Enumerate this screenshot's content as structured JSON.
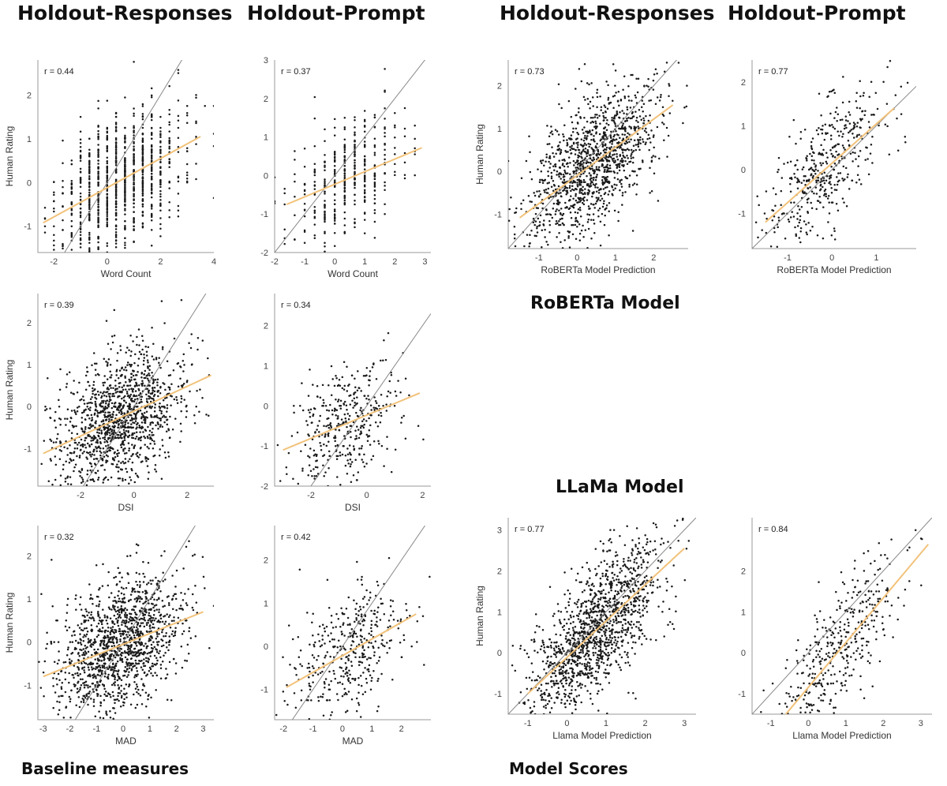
{
  "headings": {
    "col1": "Holdout-Responses",
    "col2": "Holdout-Prompt",
    "col3": "Holdout-Responses",
    "col4": "Holdout-Prompt"
  },
  "labels": {
    "roberta": "RoBERTa Model",
    "llama": "LLaMa Model",
    "baseline": "Baseline measures",
    "model_scores": "Model Scores"
  },
  "colors": {
    "fit_line": "#f2c27a",
    "identity_line": "#888888",
    "points": "#1a1a1a"
  },
  "chart_data": [
    {
      "id": "wc_resp",
      "type": "scatter",
      "annotation": "r = 0.44",
      "xlabel": "Word Count",
      "ylabel": "Human Rating",
      "xlim": [
        -2.6,
        4
      ],
      "ylim": [
        -1.6,
        2.8
      ],
      "xticks": [
        -2,
        0,
        2,
        4
      ],
      "yticks": [
        -1,
        0,
        1,
        2
      ],
      "fit": [
        [
          -2.4,
          -0.92
        ],
        [
          3.5,
          1.05
        ]
      ],
      "n_points": 1000,
      "x_discrete": true
    },
    {
      "id": "wc_prompt",
      "type": "scatter",
      "annotation": "r = 0.37",
      "xlabel": "Word Count",
      "ylabel": "",
      "xlim": [
        -2,
        3.2
      ],
      "ylim": [
        -2,
        3
      ],
      "xticks": [
        -2,
        -1,
        0,
        1,
        2,
        3
      ],
      "yticks": [
        -2,
        -1,
        0,
        1,
        2,
        3
      ],
      "fit": [
        [
          -1.6,
          -0.75
        ],
        [
          2.9,
          0.72
        ]
      ],
      "n_points": 400,
      "x_discrete": true
    },
    {
      "id": "rob_resp",
      "type": "scatter",
      "annotation": "r = 0.73",
      "xlabel": "RoBERTa Model Prediction",
      "ylabel": "Human Rating",
      "xlim": [
        -1.8,
        2.9
      ],
      "ylim": [
        -1.8,
        2.6
      ],
      "xticks": [
        -1,
        0,
        1,
        2
      ],
      "yticks": [
        -1,
        0,
        1,
        2
      ],
      "fit": [
        [
          -1.5,
          -1.08
        ],
        [
          2.5,
          1.55
        ]
      ],
      "n_points": 1300,
      "x_discrete": false
    },
    {
      "id": "rob_prompt",
      "type": "scatter",
      "annotation": "r = 0.77",
      "xlabel": "RoBERTa Model Prediction",
      "ylabel": "",
      "xlim": [
        -1.8,
        1.9
      ],
      "ylim": [
        -1.8,
        2.5
      ],
      "xticks": [
        -1,
        0,
        1
      ],
      "yticks": [
        -1,
        0,
        1,
        2
      ],
      "fit": [
        [
          -1.5,
          -1.2
        ],
        [
          1.4,
          1.4
        ]
      ],
      "n_points": 450,
      "x_discrete": false
    },
    {
      "id": "dsi_resp",
      "type": "scatter",
      "annotation": "r = 0.39",
      "xlabel": "DSI",
      "ylabel": "Human Rating",
      "xlim": [
        -3.6,
        3.0
      ],
      "ylim": [
        -1.9,
        2.7
      ],
      "xticks": [
        -2,
        0,
        2
      ],
      "yticks": [
        -1,
        0,
        1,
        2
      ],
      "fit": [
        [
          -3.4,
          -1.12
        ],
        [
          2.9,
          0.75
        ]
      ],
      "n_points": 1300,
      "x_discrete": false
    },
    {
      "id": "dsi_prompt",
      "type": "scatter",
      "annotation": "r = 0.34",
      "xlabel": "DSI",
      "ylabel": "",
      "xlim": [
        -3.3,
        2.3
      ],
      "ylim": [
        -2,
        2.8
      ],
      "xticks": [
        -2,
        0,
        2
      ],
      "yticks": [
        -2,
        -1,
        0,
        1,
        2
      ],
      "fit": [
        [
          -3.0,
          -1.1
        ],
        [
          1.9,
          0.32
        ]
      ],
      "n_points": 400,
      "x_discrete": false
    },
    {
      "id": "mad_resp",
      "type": "scatter",
      "annotation": "r = 0.32",
      "xlabel": "MAD",
      "ylabel": "Human Rating",
      "xlim": [
        -3.2,
        3.4
      ],
      "ylim": [
        -1.8,
        2.7
      ],
      "xticks": [
        -3,
        -2,
        -1,
        0,
        1,
        2,
        3
      ],
      "yticks": [
        -1,
        0,
        1,
        2
      ],
      "fit": [
        [
          -3.0,
          -0.8
        ],
        [
          3.0,
          0.7
        ]
      ],
      "n_points": 1400,
      "x_discrete": false
    },
    {
      "id": "mad_prompt",
      "type": "scatter",
      "annotation": "r = 0.42",
      "xlabel": "MAD",
      "ylabel": "",
      "xlim": [
        -2.3,
        3.0
      ],
      "ylim": [
        -1.7,
        2.8
      ],
      "xticks": [
        -2,
        -1,
        0,
        1,
        2
      ],
      "yticks": [
        -1,
        0,
        1,
        2
      ],
      "fit": [
        [
          -1.9,
          -0.95
        ],
        [
          2.5,
          0.75
        ]
      ],
      "n_points": 400,
      "x_discrete": false
    },
    {
      "id": "llama_resp",
      "type": "scatter",
      "annotation": "r = 0.77",
      "xlabel": "Llama Model Prediction",
      "ylabel": "Human Rating",
      "xlim": [
        -1.5,
        3.3
      ],
      "ylim": [
        -1.5,
        3.3
      ],
      "xticks": [
        -1,
        0,
        1,
        2,
        3
      ],
      "yticks": [
        -1,
        0,
        1,
        2,
        3
      ],
      "fit": [
        [
          -1.0,
          -1.0
        ],
        [
          3.0,
          2.55
        ]
      ],
      "n_points": 1400,
      "x_discrete": false
    },
    {
      "id": "llama_prompt",
      "type": "scatter",
      "annotation": "r = 0.84",
      "xlabel": "Llama Model Prediction",
      "ylabel": "",
      "xlim": [
        -1.5,
        3.3
      ],
      "ylim": [
        -1.5,
        3.3
      ],
      "xticks": [
        -1,
        0,
        1,
        2,
        3
      ],
      "yticks": [
        -1,
        0,
        1,
        2
      ],
      "fit": [
        [
          -0.6,
          -1.5
        ],
        [
          3.2,
          2.65
        ]
      ],
      "n_points": 450,
      "x_discrete": false
    }
  ]
}
